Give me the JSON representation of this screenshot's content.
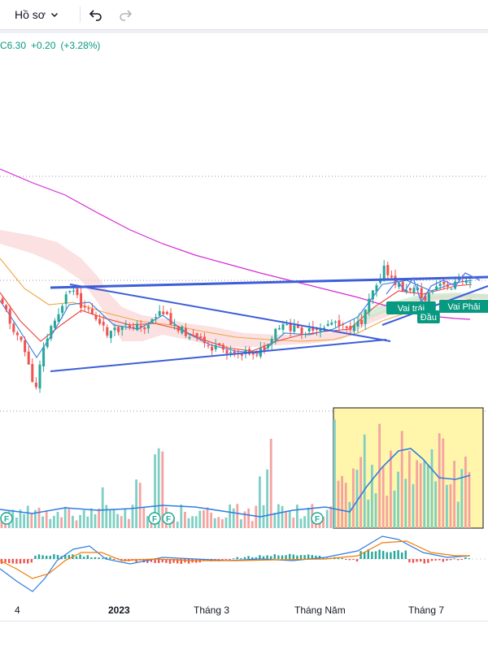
{
  "toolbar": {
    "profile_label": "Hồ sơ",
    "icons": [
      "chevron-down-icon",
      "undo-icon",
      "redo-icon"
    ]
  },
  "quote": {
    "symbol_suffix": "C",
    "price": "6.30",
    "change": "+0.20",
    "change_pct": "(+3.28%)"
  },
  "chart_data": {
    "type": "candlestick",
    "x_ticks": [
      {
        "label": "4",
        "bold": false
      },
      {
        "label": "2023",
        "bold": true
      },
      {
        "label": "Tháng 3",
        "bold": false
      },
      {
        "label": "Tháng Năm",
        "bold": false
      },
      {
        "label": "Tháng 7",
        "bold": false
      }
    ],
    "pattern_labels": [
      "Vai trái",
      "Đầu",
      "Vai Phải"
    ],
    "event_markers": [
      "F",
      "F",
      "F",
      "F"
    ],
    "colors": {
      "up": "#26a69a",
      "down": "#ef5350",
      "trendline": "#3d5ed8",
      "ma_long": "#d62ad6",
      "label_bg": "#089981",
      "highlight_fill": "#fff59d"
    }
  }
}
